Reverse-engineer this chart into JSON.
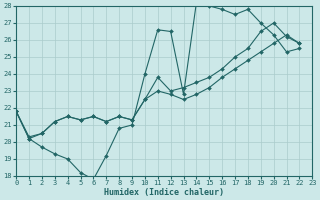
{
  "xlabel": "Humidex (Indice chaleur)",
  "xlim": [
    0,
    23
  ],
  "ylim": [
    18,
    28
  ],
  "yticks": [
    18,
    19,
    20,
    21,
    22,
    23,
    24,
    25,
    26,
    27,
    28
  ],
  "xticks": [
    0,
    1,
    2,
    3,
    4,
    5,
    6,
    7,
    8,
    9,
    10,
    11,
    12,
    13,
    14,
    15,
    16,
    17,
    18,
    19,
    20,
    21,
    22,
    23
  ],
  "bg_color": "#cce8e8",
  "grid_color": "#aacccc",
  "line_color": "#226666",
  "series": [
    {
      "x": [
        0,
        1,
        2,
        3,
        4,
        5,
        6,
        7,
        8,
        9,
        10,
        11,
        12,
        13,
        14,
        15,
        16,
        17,
        18,
        19,
        20,
        21,
        22
      ],
      "y": [
        21.8,
        20.2,
        19.7,
        19.3,
        19.0,
        18.2,
        17.8,
        19.2,
        20.8,
        21.0,
        24.0,
        26.6,
        26.5,
        22.8,
        28.2,
        28.0,
        27.8,
        27.5,
        27.8,
        27.0,
        26.3,
        25.3,
        25.5
      ]
    },
    {
      "x": [
        0,
        1,
        2,
        3,
        4,
        5,
        6,
        7,
        8,
        9,
        10,
        11,
        12,
        13,
        14,
        15,
        16,
        17,
        18,
        19,
        20,
        21,
        22
      ],
      "y": [
        21.8,
        20.2,
        20.5,
        21.2,
        21.5,
        21.3,
        21.5,
        21.2,
        21.5,
        21.3,
        22.5,
        23.8,
        23.0,
        23.2,
        23.5,
        23.8,
        24.3,
        25.0,
        25.5,
        26.5,
        27.0,
        26.2,
        25.8
      ]
    },
    {
      "x": [
        0,
        1,
        2,
        3,
        4,
        5,
        6,
        7,
        8,
        9,
        10,
        11,
        12,
        13,
        14,
        15,
        16,
        17,
        18,
        19,
        20,
        21,
        22
      ],
      "y": [
        21.8,
        20.3,
        20.5,
        21.2,
        21.5,
        21.3,
        21.5,
        21.2,
        21.5,
        21.3,
        22.5,
        23.0,
        22.8,
        22.5,
        22.8,
        23.2,
        23.8,
        24.3,
        24.8,
        25.3,
        25.8,
        26.3,
        25.8
      ]
    }
  ]
}
